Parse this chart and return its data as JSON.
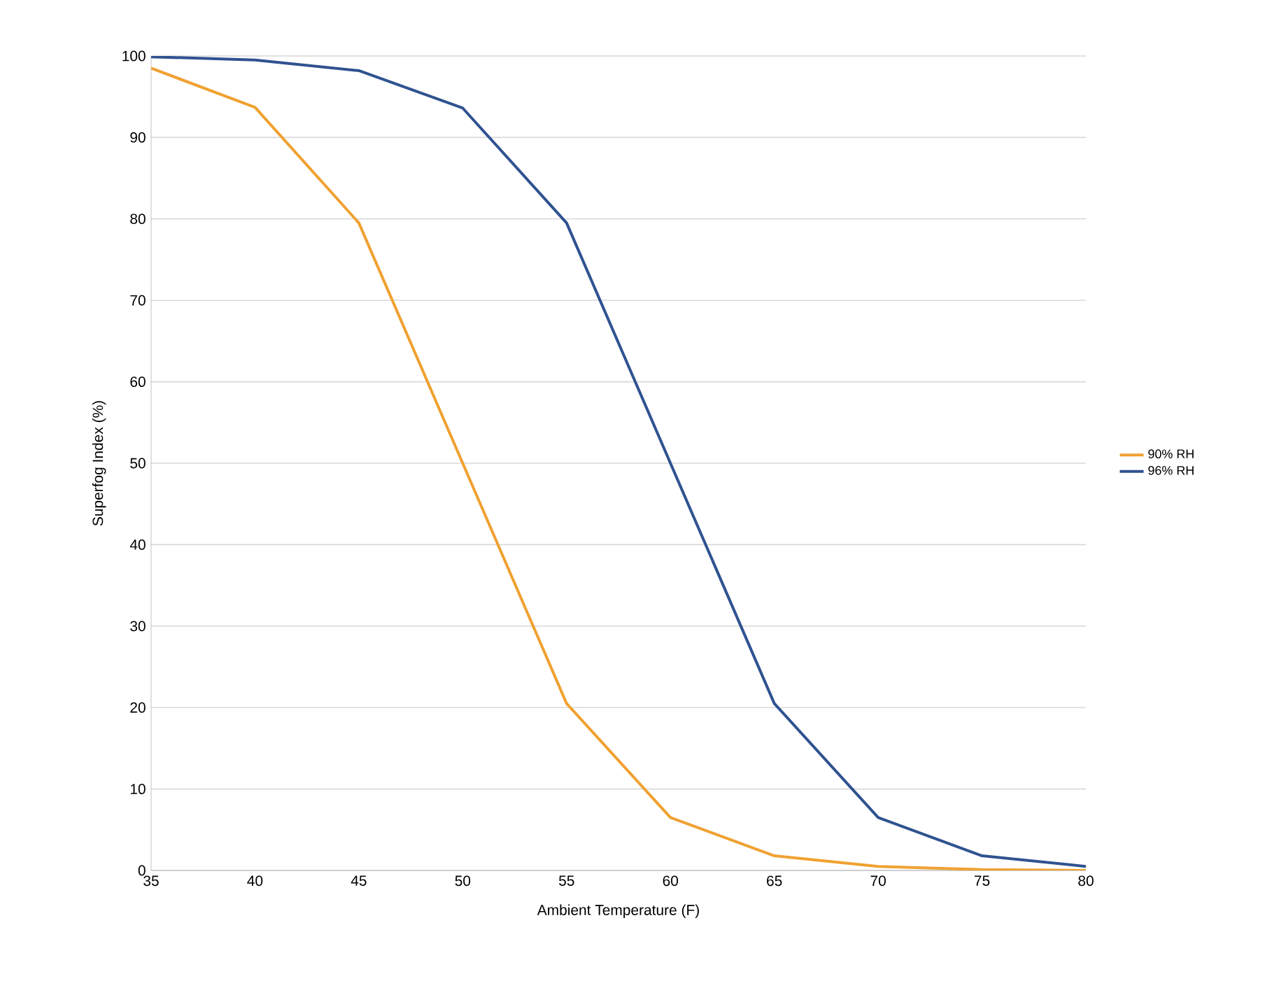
{
  "chart_data": {
    "type": "line",
    "xlabel": "Ambient Temperature (F)",
    "ylabel": "Superfog Index (%)",
    "x": [
      35,
      40,
      45,
      50,
      55,
      60,
      65,
      70,
      75,
      80
    ],
    "series": [
      {
        "name": "90% RH",
        "color": "#f0a131",
        "values": [
          98.5,
          93.7,
          79.5,
          50,
          20.5,
          6.5,
          1.8,
          0.5,
          0.1,
          0
        ]
      },
      {
        "name": "96% RH",
        "color": "#2f5290",
        "values": [
          99.9,
          99.5,
          98.2,
          93.6,
          79.5,
          50,
          20.5,
          6.5,
          1.8,
          0.5
        ]
      }
    ],
    "xlim": [
      35,
      80
    ],
    "xticks": [
      35,
      40,
      45,
      50,
      55,
      60,
      65,
      70,
      75,
      80
    ],
    "ylim": [
      0,
      100
    ],
    "yticks": [
      0,
      10,
      20,
      30,
      40,
      50,
      60,
      70,
      80,
      90,
      100
    ],
    "grid": "y",
    "legend": "right",
    "marker": "none",
    "line_style": "solid"
  }
}
